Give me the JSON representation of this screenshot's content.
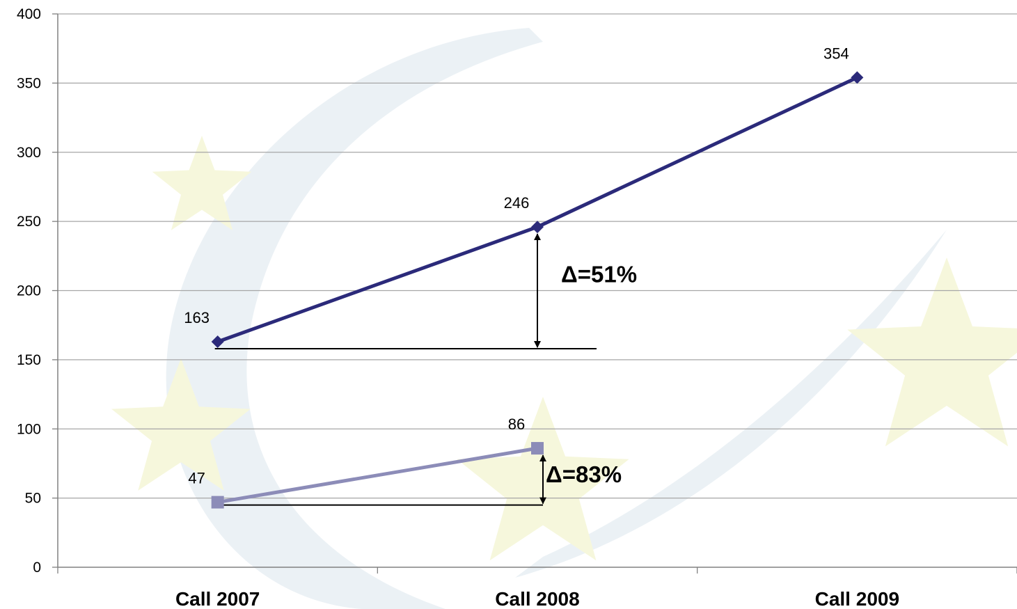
{
  "chart_data": {
    "type": "line",
    "title": "",
    "xlabel": "",
    "ylabel": "",
    "categories": [
      "Call 2007",
      "Call 2008",
      "Call 2009"
    ],
    "ylim": [
      0,
      400
    ],
    "yticks": [
      0,
      50,
      100,
      150,
      200,
      250,
      300,
      350,
      400
    ],
    "grid": true,
    "legend": "none",
    "series": [
      {
        "values": [
          163,
          246,
          354
        ],
        "data_labels": [
          "163",
          "246",
          "354"
        ],
        "color": "#2b2a7a",
        "marker": "diamond"
      },
      {
        "values": [
          47,
          86,
          null
        ],
        "data_labels": [
          "47",
          "86"
        ],
        "color": "#8c8cb8",
        "marker": "square"
      }
    ],
    "annotations": [
      {
        "text": "Δ=51%",
        "category": "Call 2008",
        "from": 158,
        "to": 246
      },
      {
        "text": "Δ=83%",
        "category": "Call 2008",
        "from": 45,
        "to": 86
      }
    ]
  },
  "colors": {
    "grid": "#a6a6a6",
    "axis": "#808080",
    "watermark_swoosh": "#e6eef2",
    "watermark_star": "#f6f7dc"
  }
}
